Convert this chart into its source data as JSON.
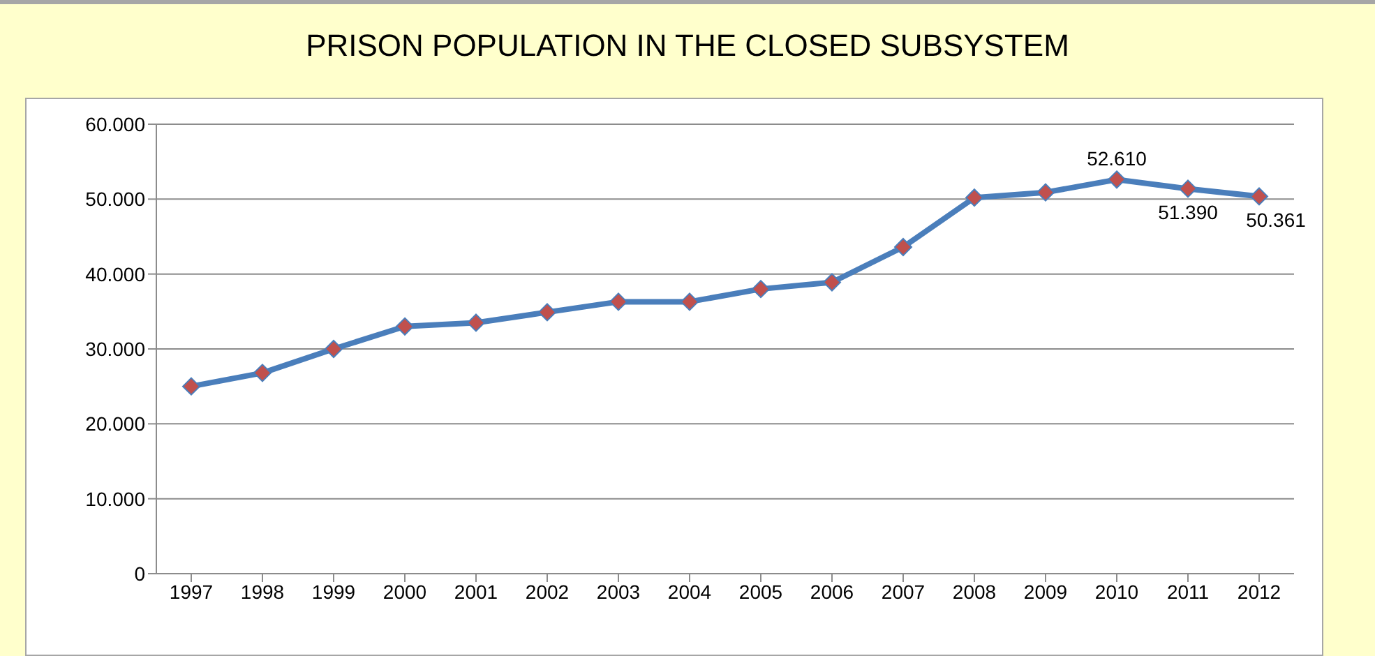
{
  "chart_data": {
    "type": "line",
    "title": "PRISON POPULATION IN THE CLOSED SUBSYSTEM",
    "categories": [
      "1997",
      "1998",
      "1999",
      "2000",
      "2001",
      "2002",
      "2003",
      "2004",
      "2005",
      "2006",
      "2007",
      "2008",
      "2009",
      "2010",
      "2011",
      "2012"
    ],
    "series": [
      {
        "color": "#4a7ebb",
        "values": [
          25000,
          26800,
          30000,
          33000,
          33500,
          34900,
          36300,
          36300,
          38000,
          38900,
          43600,
          50200,
          50900,
          52610,
          51390,
          50361
        ],
        "value_labels": [
          null,
          null,
          null,
          null,
          null,
          null,
          null,
          null,
          null,
          null,
          null,
          null,
          null,
          "52.610",
          "51.390",
          "50.361"
        ]
      }
    ],
    "ylim": [
      0,
      60000
    ],
    "yticks": [
      {
        "value": 0,
        "label": "0"
      },
      {
        "value": 10000,
        "label": "10.000"
      },
      {
        "value": 20000,
        "label": "20.000"
      },
      {
        "value": 30000,
        "label": "30.000"
      },
      {
        "value": 40000,
        "label": "40.000"
      },
      {
        "value": 50000,
        "label": "50.000"
      },
      {
        "value": 60000,
        "label": "60.000"
      }
    ],
    "grid": "y",
    "marker": "diamond",
    "line_style": "solid",
    "legend": false
  }
}
